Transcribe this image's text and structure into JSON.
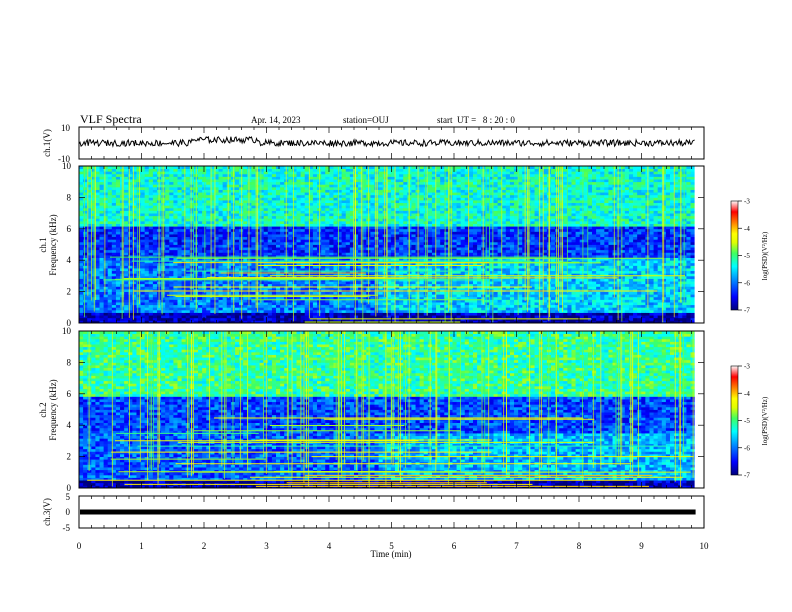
{
  "header": {
    "title": "VLF Spectra",
    "date": "Apr. 14, 2023",
    "station": "station=OUJ",
    "start": "start  UT =   8 : 20 : 0"
  },
  "chart_data": [
    {
      "type": "line",
      "panel": "ch1-waveform",
      "ylabel": "ch.1(V)",
      "ylim": [
        -10,
        10
      ],
      "yticks": [
        "10",
        "-10"
      ],
      "xlim": [
        0,
        10
      ],
      "baseline_v": 0
    },
    {
      "type": "heatmap",
      "panel": "ch1-spectrogram",
      "ylabel": "ch.1\nFrequency (kHz)",
      "ylim": [
        0,
        10
      ],
      "yticks": [
        "0",
        "2",
        "4",
        "6",
        "8",
        "10"
      ],
      "xlim": [
        0,
        10
      ],
      "data_end_min": 9.85,
      "colorbar": {
        "label": "log(PSD)(V²/Hz)",
        "ticks": [
          "-3",
          "-4",
          "-5",
          "-6",
          "-7"
        ],
        "range": [
          -7,
          -3
        ]
      },
      "regions": [
        {
          "f": [
            6.2,
            10
          ],
          "t": [
            0,
            9.85
          ],
          "level": -5.3
        },
        {
          "f": [
            4.2,
            6.2
          ],
          "t": [
            0,
            9.85
          ],
          "level": -6.3
        },
        {
          "f": [
            0.6,
            4.2
          ],
          "t": [
            0,
            4.8
          ],
          "level": -6.0
        },
        {
          "f": [
            0.6,
            4.2
          ],
          "t": [
            4.8,
            9.85
          ],
          "level": -5.6
        },
        {
          "f": [
            0,
            0.6
          ],
          "t": [
            0,
            9.85
          ],
          "level": -6.8
        }
      ]
    },
    {
      "type": "heatmap",
      "panel": "ch2-spectrogram",
      "ylabel": "ch.2\nFrequency (kHz)",
      "ylim": [
        0,
        10
      ],
      "yticks": [
        "0",
        "2",
        "4",
        "6",
        "8",
        "10"
      ],
      "xlim": [
        0,
        10
      ],
      "data_end_min": 9.85,
      "colorbar": {
        "label": "log(PSD)(V²/Hz)",
        "ticks": [
          "-3",
          "-4",
          "-5",
          "-6",
          "-7"
        ],
        "range": [
          -7,
          -3
        ]
      },
      "regions": [
        {
          "f": [
            5.8,
            10
          ],
          "t": [
            0,
            9.85
          ],
          "level": -5.1
        },
        {
          "f": [
            3.5,
            5.8
          ],
          "t": [
            0,
            9.85
          ],
          "level": -6.2
        },
        {
          "f": [
            0.5,
            3.5
          ],
          "t": [
            0,
            4.8
          ],
          "level": -6.1
        },
        {
          "f": [
            0.5,
            3.5
          ],
          "t": [
            4.8,
            9.85
          ],
          "level": -5.7
        },
        {
          "f": [
            0,
            0.5
          ],
          "t": [
            0,
            9.85
          ],
          "level": -6.8
        }
      ]
    },
    {
      "type": "line",
      "panel": "ch3-waveform",
      "ylabel": "ch.3(V)",
      "ylim": [
        -5,
        5
      ],
      "yticks": [
        "5",
        "0",
        "-5"
      ],
      "xlim": [
        0,
        10
      ],
      "baseline_v": 0
    }
  ],
  "xaxis": {
    "label": "Time (min)",
    "ticks": [
      "0",
      "1",
      "2",
      "3",
      "4",
      "5",
      "6",
      "7",
      "8",
      "9",
      "10"
    ]
  },
  "colors": {
    "colormap": [
      "#00007a",
      "#0000ff",
      "#0090ff",
      "#00ffff",
      "#40ff60",
      "#e0ff00",
      "#ffff00",
      "#ff8000",
      "#ff0000",
      "#ffffff"
    ]
  }
}
